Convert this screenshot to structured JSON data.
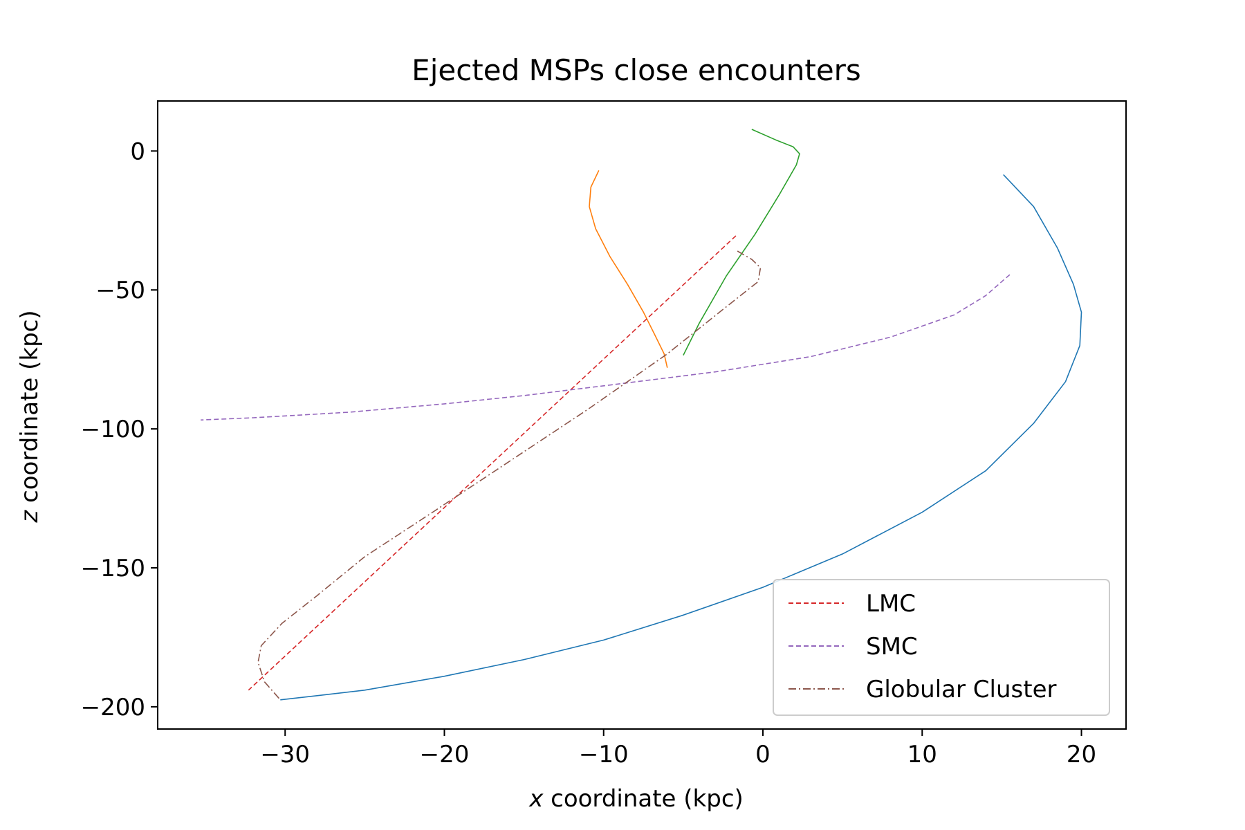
{
  "chart_data": {
    "type": "line",
    "title": "Ejected MSPs close encounters",
    "xlabel_var": "x",
    "xlabel_rest": " coordinate (kpc)",
    "ylabel_var": "z",
    "ylabel_rest": " coordinate (kpc)",
    "xlim": [
      -38,
      22.8
    ],
    "ylim": [
      -208,
      18
    ],
    "xticks": [
      -30,
      -20,
      -10,
      0,
      10,
      20
    ],
    "yticks": [
      0,
      -50,
      -100,
      -150,
      -200
    ],
    "grid": false,
    "legend_position": "lower-right",
    "series": [
      {
        "name": "",
        "color": "#1f77b4",
        "style": "solid",
        "x": [
          15.1,
          17.0,
          18.5,
          19.5,
          20.0,
          19.9,
          19.0,
          17.0,
          14.0,
          10.0,
          5.0,
          0.0,
          -5.0,
          -10.0,
          -15.0,
          -20.0,
          -25.0,
          -28.0,
          -30.3
        ],
        "y": [
          -8.5,
          -20,
          -35,
          -48,
          -58,
          -70,
          -83,
          -98,
          -115,
          -130,
          -145,
          -157,
          -167,
          -176,
          -183,
          -189,
          -194,
          -196,
          -197.5
        ]
      },
      {
        "name": "",
        "color": "#ff7f0e",
        "style": "solid",
        "x": [
          -10.3,
          -10.8,
          -10.9,
          -10.5,
          -9.6,
          -8.5,
          -7.5,
          -6.8,
          -6.2,
          -6.0
        ],
        "y": [
          -7,
          -13,
          -20,
          -28,
          -38,
          -48,
          -58,
          -66,
          -73,
          -78
        ]
      },
      {
        "name": "",
        "color": "#2ca02c",
        "style": "solid",
        "x": [
          -0.7,
          0.8,
          1.9,
          2.3,
          2.1,
          1.0,
          -0.5,
          -2.3,
          -4.0,
          -5.0
        ],
        "y": [
          7.8,
          4.0,
          1.5,
          -1.0,
          -5.0,
          -16,
          -30,
          -45,
          -62,
          -73.5
        ]
      },
      {
        "name": "LMC",
        "color": "#d62728",
        "style": "dashed",
        "x": [
          -1.7,
          -32.3
        ],
        "y": [
          -30.5,
          -194
        ]
      },
      {
        "name": "SMC",
        "color": "#9467bd",
        "style": "dashed",
        "x": [
          15.5,
          14.0,
          12.0,
          8.0,
          3.0,
          -3.0,
          -10.0,
          -15.0,
          -20.0,
          -26.0,
          -32.0,
          -35.3
        ],
        "y": [
          -44.5,
          -52,
          -59,
          -67,
          -74,
          -79.5,
          -84.5,
          -88,
          -91,
          -94,
          -96,
          -96.8
        ]
      },
      {
        "name": "Globular Cluster",
        "color": "#8c564b",
        "style": "dashdot",
        "x": [
          -1.6,
          -0.7,
          -0.15,
          -0.3,
          -2.5,
          -6.0,
          -11.0,
          -16.0,
          -21.0,
          -25.0,
          -28.0,
          -30.2,
          -31.5,
          -31.7,
          -31.3,
          -30.3
        ],
        "y": [
          -36,
          -39,
          -42,
          -47,
          -57,
          -73,
          -93,
          -112,
          -131,
          -146,
          -160,
          -170,
          -178,
          -184,
          -191,
          -197.5
        ]
      }
    ]
  }
}
